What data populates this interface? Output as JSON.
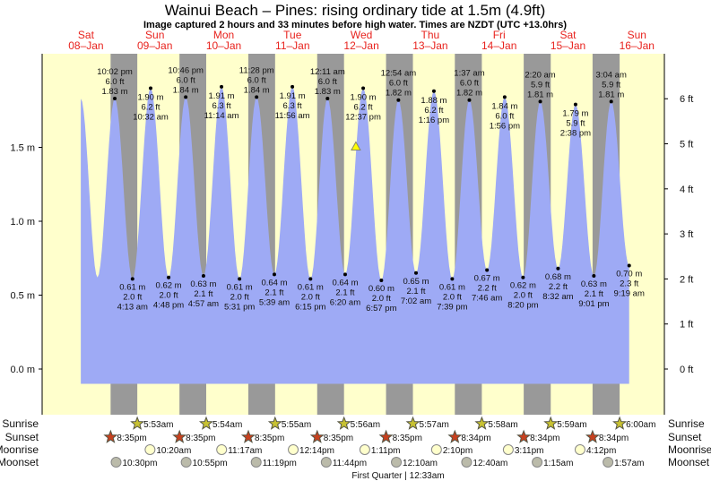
{
  "title": "Wainui Beach – Pines: rising  ordinary tide at 1.5m (4.9ft)",
  "subtitle": "Image captured 2 hours and 33 minutes before high water. Times are NZDT (UTC +13.0hrs)",
  "colors": {
    "water": "#9eaaf5",
    "day": "#ffffcc",
    "night": "#999999",
    "day_label": "#e8231e",
    "sunrise": "#c8c232",
    "sunset": "#c8401e",
    "moonrise": "#ffffcc",
    "moonset": "#bbbbaa",
    "marker": "#ffff00"
  },
  "chart_data": {
    "type": "area",
    "ylabel_left_unit": "m",
    "ylabel_right_unit": "ft",
    "ylim_m": [
      -0.1,
      1.95
    ],
    "left_ticks": [
      "0.0 m",
      "0.5 m",
      "1.0 m",
      "1.5 m"
    ],
    "left_tick_values": [
      0,
      0.5,
      1,
      1.5
    ],
    "right_ticks": [
      "0 ft",
      "1 ft",
      "2 ft",
      "3 ft",
      "4 ft",
      "5 ft",
      "6 ft"
    ],
    "days": [
      {
        "dow": "Sat",
        "date": "08–Jan"
      },
      {
        "dow": "Sun",
        "date": "09–Jan"
      },
      {
        "dow": "Mon",
        "date": "10–Jan"
      },
      {
        "dow": "Tue",
        "date": "11–Jan"
      },
      {
        "dow": "Wed",
        "date": "12–Jan"
      },
      {
        "dow": "Thu",
        "date": "13–Jan"
      },
      {
        "dow": "Fri",
        "date": "14–Jan"
      },
      {
        "dow": "Sat",
        "date": "15–Jan"
      },
      {
        "dow": "Sun",
        "date": "16–Jan"
      }
    ],
    "curve_start": [
      {
        "day": 0,
        "time": "10:12",
        "m": 1.83
      },
      {
        "day": 0,
        "time": "16:00",
        "m": 0.62
      }
    ],
    "extremes": [
      {
        "type": "high",
        "day": 0,
        "time": "22:02",
        "label": "10:02 pm",
        "ft": "6.0 ft",
        "m": 1.83
      },
      {
        "type": "low",
        "day": 1,
        "time": "04:13",
        "label": "4:13 am",
        "ft": "2.0 ft",
        "m": 0.61
      },
      {
        "type": "high",
        "day": 1,
        "time": "10:32",
        "label": "10:32 am",
        "ft": "6.2 ft",
        "m": 1.9
      },
      {
        "type": "low",
        "day": 1,
        "time": "16:48",
        "label": "4:48 pm",
        "ft": "2.0 ft",
        "m": 0.62
      },
      {
        "type": "high",
        "day": 1,
        "time": "22:46",
        "label": "10:46 pm",
        "ft": "6.0 ft",
        "m": 1.84
      },
      {
        "type": "low",
        "day": 2,
        "time": "04:57",
        "label": "4:57 am",
        "ft": "2.1 ft",
        "m": 0.63
      },
      {
        "type": "high",
        "day": 2,
        "time": "11:14",
        "label": "11:14 am",
        "ft": "6.3 ft",
        "m": 1.91
      },
      {
        "type": "low",
        "day": 2,
        "time": "17:31",
        "label": "5:31 pm",
        "ft": "2.0 ft",
        "m": 0.61
      },
      {
        "type": "high",
        "day": 2,
        "time": "23:28",
        "label": "11:28 pm",
        "ft": "6.0 ft",
        "m": 1.84
      },
      {
        "type": "low",
        "day": 3,
        "time": "05:39",
        "label": "5:39 am",
        "ft": "2.1 ft",
        "m": 0.64
      },
      {
        "type": "high",
        "day": 3,
        "time": "11:56",
        "label": "11:56 am",
        "ft": "6.3 ft",
        "m": 1.91
      },
      {
        "type": "low",
        "day": 3,
        "time": "18:15",
        "label": "6:15 pm",
        "ft": "2.0 ft",
        "m": 0.61
      },
      {
        "type": "high",
        "day": 4,
        "time": "00:11",
        "label": "12:11 am",
        "ft": "6.0 ft",
        "m": 1.83
      },
      {
        "type": "low",
        "day": 4,
        "time": "06:20",
        "label": "6:20 am",
        "ft": "2.1 ft",
        "m": 0.64
      },
      {
        "type": "high",
        "day": 4,
        "time": "12:37",
        "label": "12:37 pm",
        "ft": "6.2 ft",
        "m": 1.9
      },
      {
        "type": "low",
        "day": 4,
        "time": "18:57",
        "label": "6:57 pm",
        "ft": "2.0 ft",
        "m": 0.6
      },
      {
        "type": "high",
        "day": 5,
        "time": "00:54",
        "label": "12:54 am",
        "ft": "6.0 ft",
        "m": 1.82
      },
      {
        "type": "low",
        "day": 5,
        "time": "07:02",
        "label": "7:02 am",
        "ft": "2.1 ft",
        "m": 0.65
      },
      {
        "type": "high",
        "day": 5,
        "time": "13:16",
        "label": "1:16 pm",
        "ft": "6.2 ft",
        "m": 1.88
      },
      {
        "type": "low",
        "day": 5,
        "time": "19:39",
        "label": "7:39 pm",
        "ft": "2.0 ft",
        "m": 0.61
      },
      {
        "type": "high",
        "day": 6,
        "time": "01:37",
        "label": "1:37 am",
        "ft": "6.0 ft",
        "m": 1.82
      },
      {
        "type": "low",
        "day": 6,
        "time": "07:46",
        "label": "7:46 am",
        "ft": "2.2 ft",
        "m": 0.67
      },
      {
        "type": "high",
        "day": 6,
        "time": "13:56",
        "label": "1:56 pm",
        "ft": "6.0 ft",
        "m": 1.84
      },
      {
        "type": "low",
        "day": 6,
        "time": "20:20",
        "label": "8:20 pm",
        "ft": "2.0 ft",
        "m": 0.62
      },
      {
        "type": "high",
        "day": 7,
        "time": "02:20",
        "label": "2:20 am",
        "ft": "5.9 ft",
        "m": 1.81
      },
      {
        "type": "low",
        "day": 7,
        "time": "08:32",
        "label": "8:32 am",
        "ft": "2.2 ft",
        "m": 0.68
      },
      {
        "type": "high",
        "day": 7,
        "time": "14:38",
        "label": "2:38 pm",
        "ft": "5.9 ft",
        "m": 1.79
      },
      {
        "type": "low",
        "day": 7,
        "time": "21:01",
        "label": "9:01 pm",
        "ft": "2.1 ft",
        "m": 0.63
      },
      {
        "type": "high",
        "day": 8,
        "time": "03:04",
        "label": "3:04 am",
        "ft": "5.9 ft",
        "m": 1.81
      },
      {
        "type": "low",
        "day": 8,
        "time": "09:19",
        "label": "9:19 am",
        "ft": "2.3 ft",
        "m": 0.7
      }
    ],
    "current": {
      "day": 4,
      "time": "10:04",
      "m": 1.5
    }
  },
  "events": {
    "labels": {
      "sunrise": "Sunrise",
      "sunset": "Sunset",
      "moonrise": "Moonrise",
      "moonset": "Moonset"
    },
    "sunrise": [
      {
        "day": 1,
        "time": "05:53",
        "label": "5:53am"
      },
      {
        "day": 2,
        "time": "05:54",
        "label": "5:54am"
      },
      {
        "day": 3,
        "time": "05:55",
        "label": "5:55am"
      },
      {
        "day": 4,
        "time": "05:56",
        "label": "5:56am"
      },
      {
        "day": 5,
        "time": "05:57",
        "label": "5:57am"
      },
      {
        "day": 6,
        "time": "05:58",
        "label": "5:58am"
      },
      {
        "day": 7,
        "time": "05:59",
        "label": "5:59am"
      },
      {
        "day": 8,
        "time": "06:00",
        "label": "6:00am"
      }
    ],
    "sunset": [
      {
        "day": 0,
        "time": "20:35",
        "label": "8:35pm"
      },
      {
        "day": 1,
        "time": "20:35",
        "label": "8:35pm"
      },
      {
        "day": 2,
        "time": "20:35",
        "label": "8:35pm"
      },
      {
        "day": 3,
        "time": "20:35",
        "label": "8:35pm"
      },
      {
        "day": 4,
        "time": "20:35",
        "label": "8:35pm"
      },
      {
        "day": 5,
        "time": "20:34",
        "label": "8:34pm"
      },
      {
        "day": 6,
        "time": "20:34",
        "label": "8:34pm"
      },
      {
        "day": 7,
        "time": "20:34",
        "label": "8:34pm"
      }
    ],
    "moonrise": [
      {
        "day": 1,
        "time": "10:20",
        "label": "10:20am"
      },
      {
        "day": 2,
        "time": "11:17",
        "label": "11:17am"
      },
      {
        "day": 3,
        "time": "12:14",
        "label": "12:14pm"
      },
      {
        "day": 4,
        "time": "13:11",
        "label": "1:11pm"
      },
      {
        "day": 5,
        "time": "14:10",
        "label": "2:10pm"
      },
      {
        "day": 6,
        "time": "15:11",
        "label": "3:11pm"
      },
      {
        "day": 7,
        "time": "16:12",
        "label": "4:12pm"
      }
    ],
    "moonset": [
      {
        "day": 0,
        "time": "22:30",
        "label": "10:30pm"
      },
      {
        "day": 1,
        "time": "22:55",
        "label": "10:55pm"
      },
      {
        "day": 2,
        "time": "23:19",
        "label": "11:19pm"
      },
      {
        "day": 3,
        "time": "23:44",
        "label": "11:44pm"
      },
      {
        "day": 5,
        "time": "00:10",
        "label": "12:10am"
      },
      {
        "day": 6,
        "time": "00:40",
        "label": "12:40am"
      },
      {
        "day": 7,
        "time": "01:15",
        "label": "1:15am"
      },
      {
        "day": 8,
        "time": "01:57",
        "label": "1:57am"
      }
    ],
    "moon_phase": "First Quarter | 12:33am"
  }
}
